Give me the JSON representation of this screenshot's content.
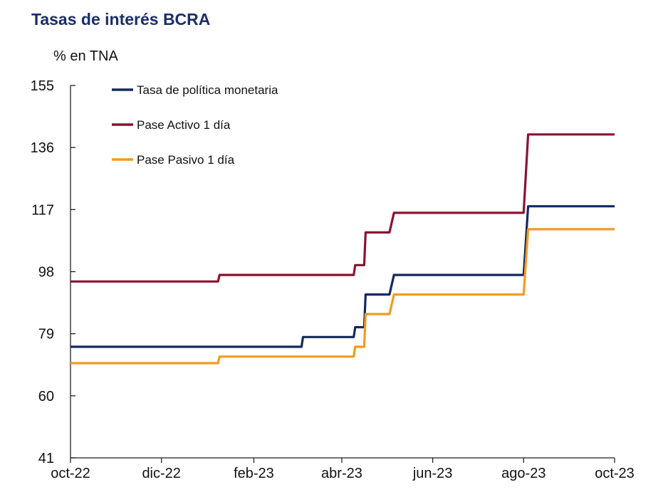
{
  "chart_data": {
    "type": "line",
    "title": "Tasas de interés BCRA",
    "ylabel": "% en TNA",
    "xlabel": "",
    "ylim": [
      41,
      155
    ],
    "yticks": [
      41,
      60,
      79,
      98,
      117,
      136,
      155
    ],
    "xlim": [
      "2022-10-01",
      "2023-10-01"
    ],
    "xticks": [
      {
        "date": "2022-10-01",
        "label": "oct-22"
      },
      {
        "date": "2022-12-01",
        "label": "dic-22"
      },
      {
        "date": "2023-02-01",
        "label": "feb-23"
      },
      {
        "date": "2023-04-01",
        "label": "abr-23"
      },
      {
        "date": "2023-06-01",
        "label": "jun-23"
      },
      {
        "date": "2023-08-01",
        "label": "ago-23"
      },
      {
        "date": "2023-10-01",
        "label": "oct-23"
      }
    ],
    "grid": false,
    "legend_position": "top-left",
    "series": [
      {
        "name": "Tasa de política monetaria",
        "color": "#13295e",
        "points": [
          [
            "2022-10-01",
            75
          ],
          [
            "2023-03-05",
            75
          ],
          [
            "2023-03-06",
            78
          ],
          [
            "2023-04-09",
            78
          ],
          [
            "2023-04-10",
            81
          ],
          [
            "2023-04-16",
            81
          ],
          [
            "2023-04-17",
            91
          ],
          [
            "2023-05-03",
            91
          ],
          [
            "2023-05-06",
            97
          ],
          [
            "2023-08-01",
            97
          ],
          [
            "2023-08-04",
            118
          ],
          [
            "2023-10-01",
            118
          ]
        ]
      },
      {
        "name": "Pase Activo 1 día",
        "color": "#8c1230",
        "points": [
          [
            "2022-10-01",
            95
          ],
          [
            "2023-01-08",
            95
          ],
          [
            "2023-01-09",
            97
          ],
          [
            "2023-04-09",
            97
          ],
          [
            "2023-04-10",
            100
          ],
          [
            "2023-04-16",
            100
          ],
          [
            "2023-04-17",
            110
          ],
          [
            "2023-05-03",
            110
          ],
          [
            "2023-05-06",
            116
          ],
          [
            "2023-08-01",
            116
          ],
          [
            "2023-08-04",
            140
          ],
          [
            "2023-10-01",
            140
          ]
        ]
      },
      {
        "name": "Pase Pasivo 1 día",
        "color": "#f39a1e",
        "points": [
          [
            "2022-10-01",
            70
          ],
          [
            "2023-01-08",
            70
          ],
          [
            "2023-01-09",
            72
          ],
          [
            "2023-04-09",
            72
          ],
          [
            "2023-04-10",
            75
          ],
          [
            "2023-04-16",
            75
          ],
          [
            "2023-04-17",
            85
          ],
          [
            "2023-05-03",
            85
          ],
          [
            "2023-05-06",
            91
          ],
          [
            "2023-08-01",
            91
          ],
          [
            "2023-08-04",
            111
          ],
          [
            "2023-10-01",
            111
          ]
        ]
      }
    ]
  }
}
